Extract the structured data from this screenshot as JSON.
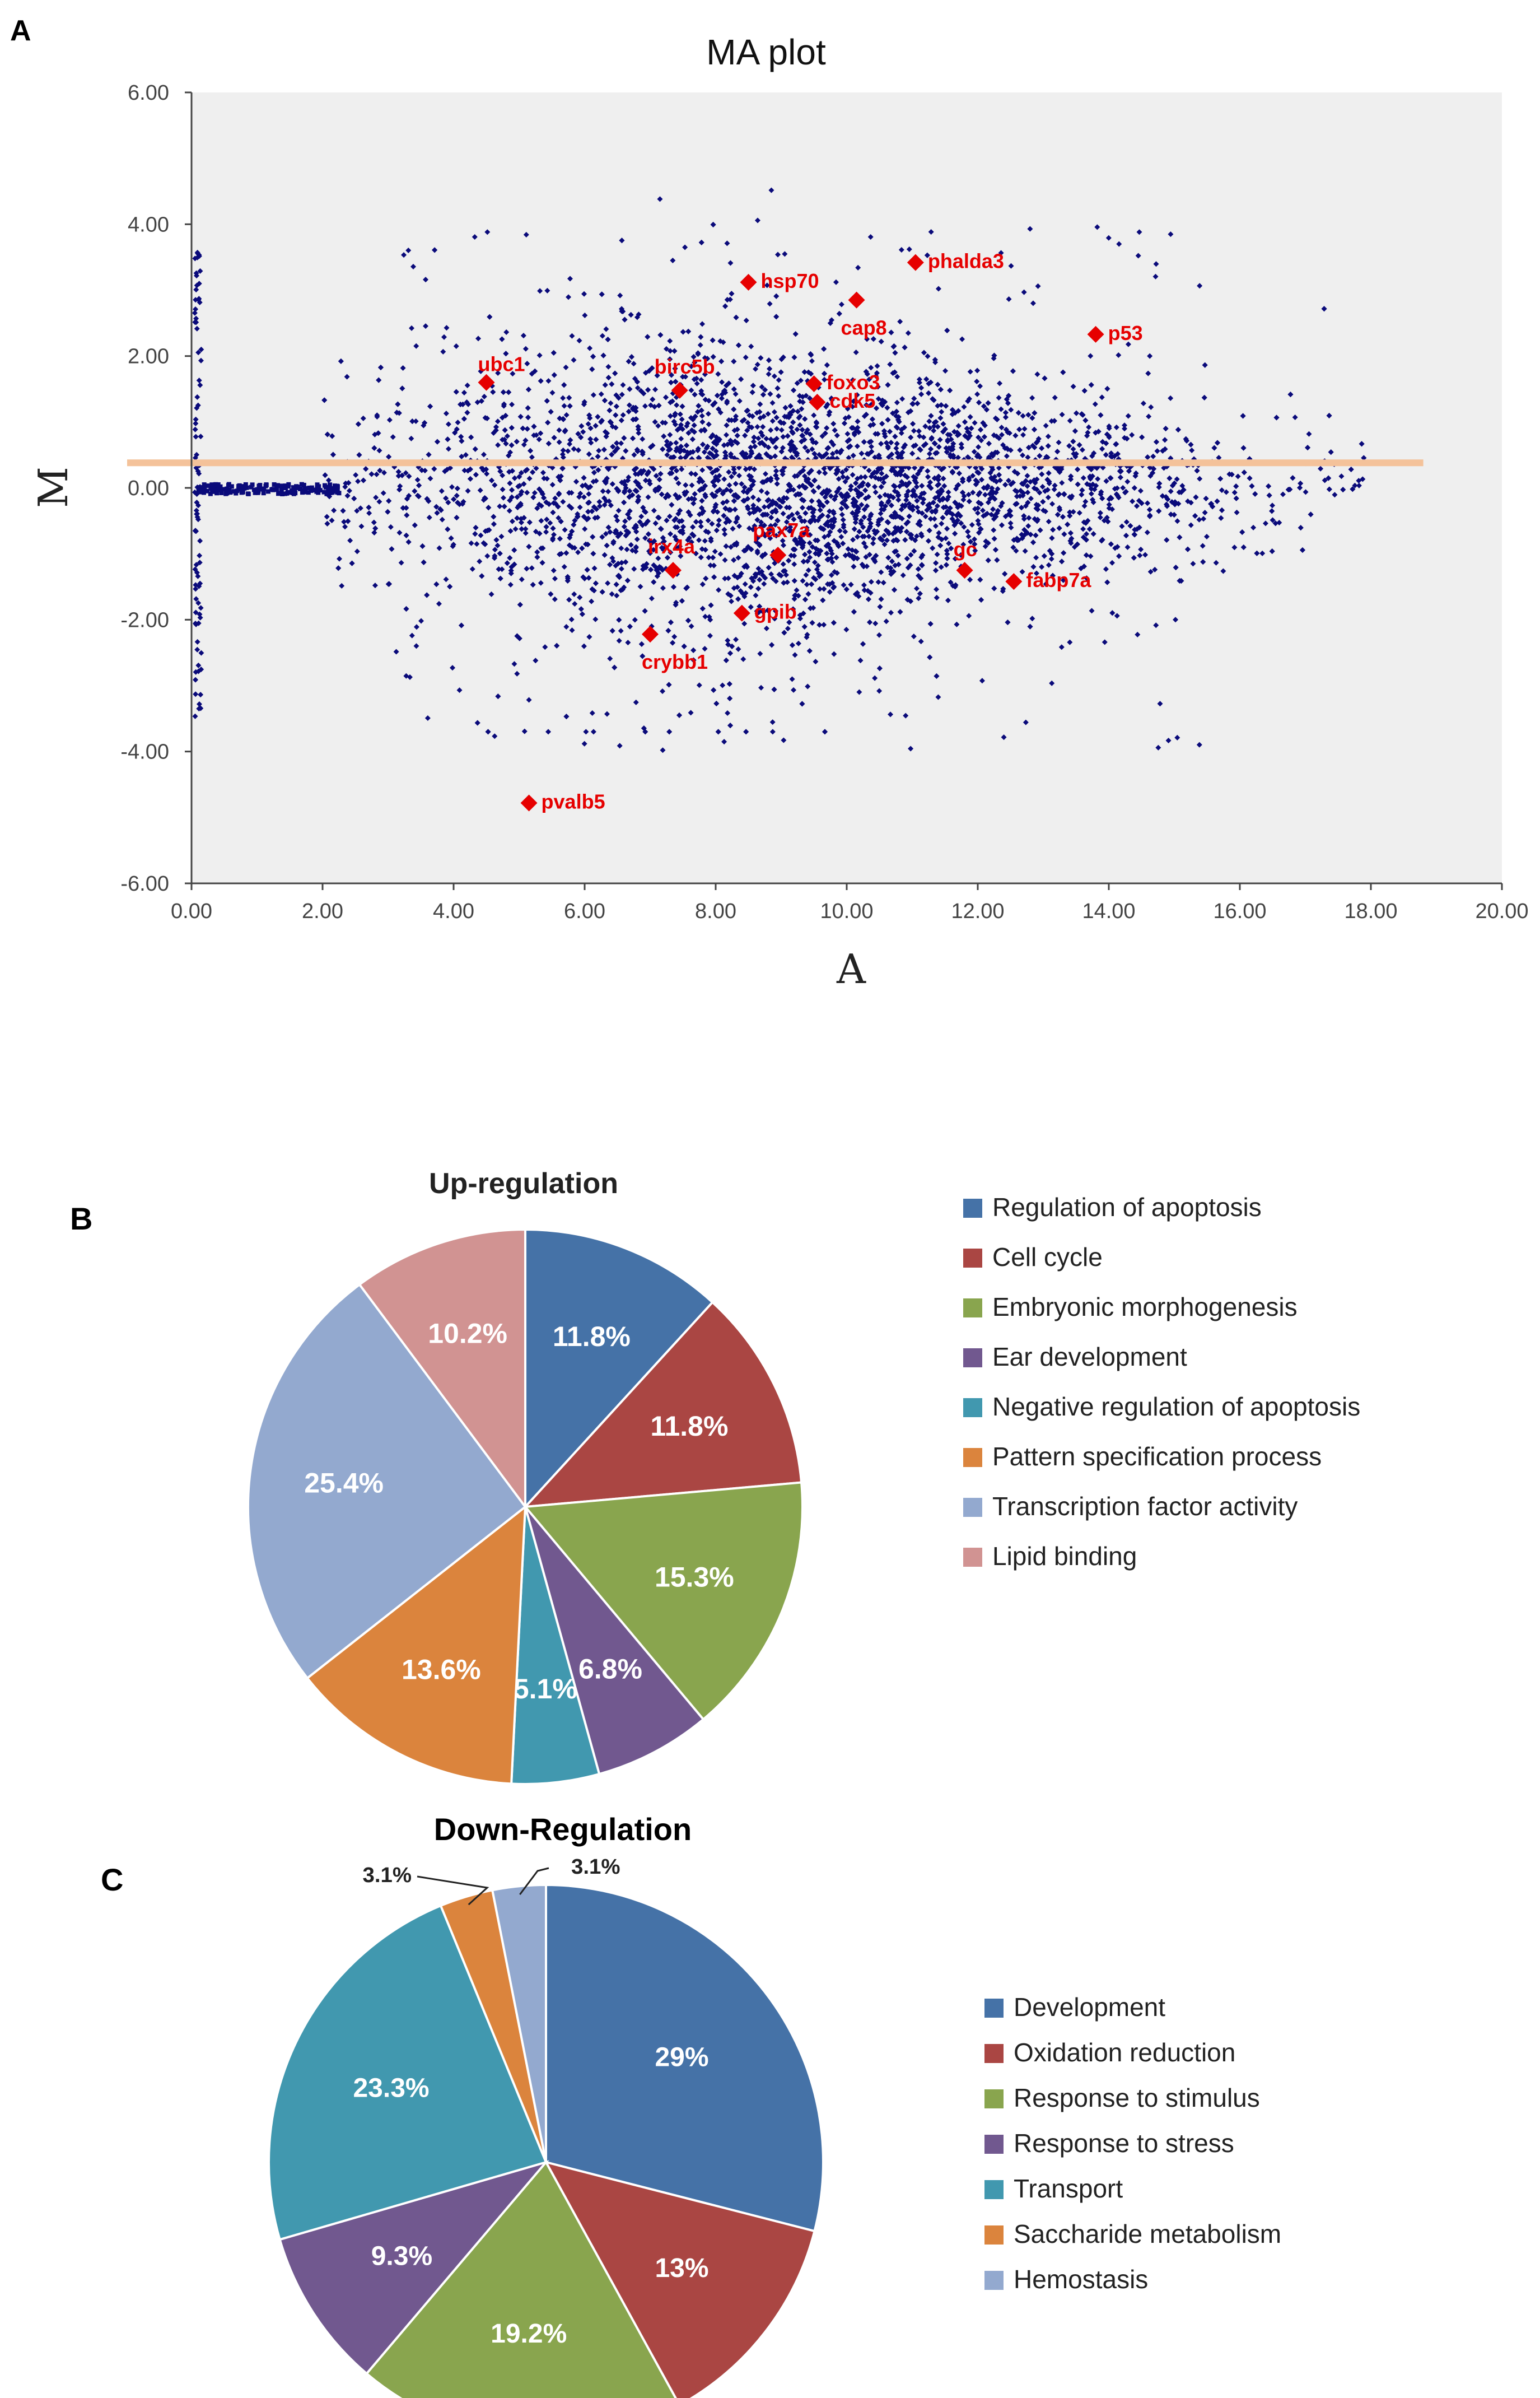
{
  "figure": {
    "panels": [
      {
        "letter": "A"
      },
      {
        "letter": "B"
      },
      {
        "letter": "C"
      }
    ],
    "colors": {
      "point": "#0a0a7a",
      "highlight": "#e60000",
      "threshold": "#f4c29a",
      "plot_bg": "#efefef"
    }
  },
  "chart_data": [
    {
      "type": "scatter",
      "title": "MA plot",
      "xlabel": "A",
      "ylabel": "M",
      "xlim": [
        0,
        20
      ],
      "ylim": [
        -6,
        6
      ],
      "xticks": [
        "0.00",
        "2.00",
        "4.00",
        "6.00",
        "8.00",
        "10.00",
        "12.00",
        "14.00",
        "16.00",
        "18.00",
        "20.00"
      ],
      "yticks": [
        "6.00",
        "4.00",
        "2.00",
        "0.00",
        "-2.00",
        "-4.00",
        "-6.00"
      ],
      "threshold_line": {
        "y": 0.38,
        "x_range": [
          0,
          18.8
        ]
      },
      "cloud": {
        "x_range": [
          0.2,
          18
        ],
        "point_count": 5200
      },
      "labeled_points": [
        {
          "label": "phalda3",
          "x": 11.05,
          "y": 3.42
        },
        {
          "label": "hsp70",
          "x": 8.5,
          "y": 3.12
        },
        {
          "label": "cap8",
          "x": 10.15,
          "y": 2.85
        },
        {
          "label": "p53",
          "x": 13.8,
          "y": 2.33
        },
        {
          "label": "ubc1",
          "x": 4.5,
          "y": 1.6
        },
        {
          "label": "birc5b",
          "x": 7.45,
          "y": 1.48
        },
        {
          "label": "foxo3",
          "x": 9.5,
          "y": 1.58
        },
        {
          "label": "cdk5",
          "x": 9.55,
          "y": 1.3
        },
        {
          "label": "pax7a",
          "x": 8.95,
          "y": -1.02
        },
        {
          "label": "irx4a",
          "x": 7.35,
          "y": -1.25
        },
        {
          "label": "gc",
          "x": 11.8,
          "y": -1.25
        },
        {
          "label": "fabp7a",
          "x": 12.55,
          "y": -1.42
        },
        {
          "label": "gpib",
          "x": 8.4,
          "y": -1.9
        },
        {
          "label": "crybb1",
          "x": 7.0,
          "y": -2.22
        },
        {
          "label": "pvalb5",
          "x": 5.15,
          "y": -4.78
        }
      ]
    },
    {
      "type": "pie",
      "title": "Up-regulation",
      "categories": [
        "Regulation of apoptosis",
        "Cell cycle",
        "Embryonic morphogenesis",
        "Ear development",
        "Negative regulation of apoptosis",
        "Pattern specification process",
        "Transcription factor activity",
        "Lipid binding"
      ],
      "values": [
        11.8,
        11.8,
        15.3,
        6.8,
        5.1,
        13.6,
        25.4,
        10.2
      ],
      "value_labels": [
        "11.8%",
        "11.8%",
        "15.3%",
        "6.8%",
        "5.1%",
        "13.6%",
        "25.4%",
        "10.2%"
      ],
      "colors": [
        "#4572a7",
        "#aa4643",
        "#89a54e",
        "#71588f",
        "#4198af",
        "#db843d",
        "#93a9cf",
        "#d19392"
      ],
      "legend": "right"
    },
    {
      "type": "pie",
      "title": "Down-Regulation",
      "categories": [
        "Development",
        "Oxidation reduction",
        "Response to stimulus",
        "Response to stress",
        "Transport",
        "Saccharide metabolism",
        "Hemostasis"
      ],
      "values": [
        29,
        13,
        19.2,
        9.3,
        23.3,
        3.1,
        3.1
      ],
      "value_labels": [
        "29%",
        "13%",
        "19.2%",
        "9.3%",
        "23.3%",
        "3.1%",
        "3.1%"
      ],
      "colors": [
        "#4572a7",
        "#aa4643",
        "#89a54e",
        "#71588f",
        "#4198af",
        "#db843d",
        "#93a9cf"
      ],
      "legend": "right"
    }
  ]
}
